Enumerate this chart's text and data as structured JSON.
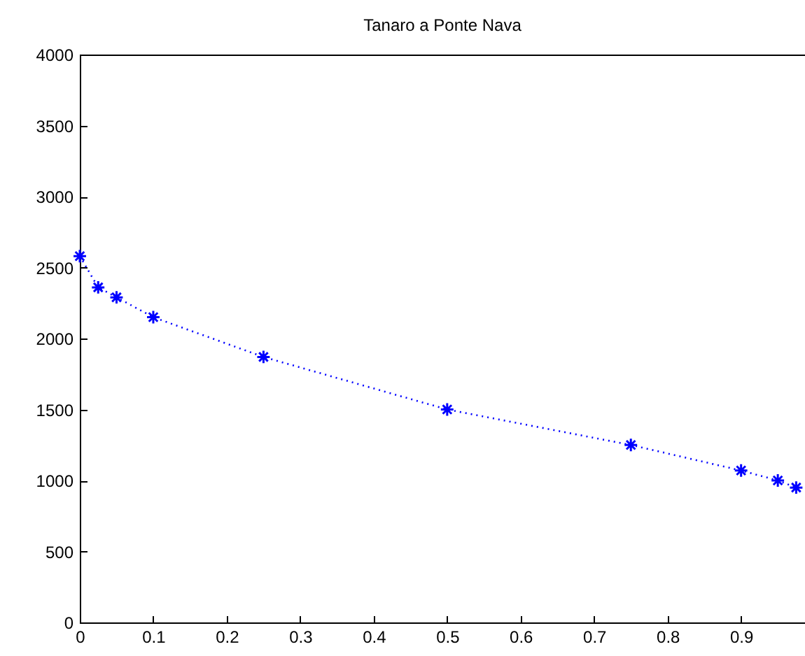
{
  "chart_data": {
    "type": "line",
    "title": "Tanaro a Ponte Nava",
    "x": [
      0,
      0.025,
      0.05,
      0.1,
      0.25,
      0.5,
      0.75,
      0.9,
      0.95,
      0.975
    ],
    "series": [
      {
        "color": "#0000ff",
        "values": [
          2580,
          2360,
          2290,
          2150,
          1870,
          1500,
          1250,
          1070,
          1000,
          950
        ]
      }
    ],
    "xlim": [
      0,
      0.987
    ],
    "xticks": [
      0,
      0.1,
      0.2,
      0.3,
      0.4,
      0.5,
      0.6,
      0.7,
      0.8,
      0.9
    ],
    "ylim": [
      0,
      4000
    ],
    "yticks": [
      0,
      500,
      1000,
      1500,
      2000,
      2500,
      3000,
      3500,
      4000
    ],
    "grid": false,
    "marker": "cross",
    "line_style": "dotted"
  }
}
